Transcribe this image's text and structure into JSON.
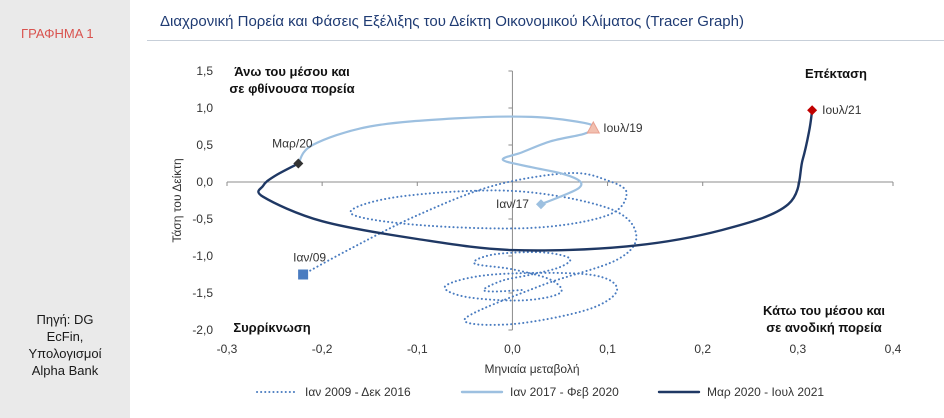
{
  "sidebar": {
    "figure_label": "ΓΡΑΦΗΜΑ 1",
    "source_lines": [
      "Πηγή: DG",
      "EcFin,",
      "Υπολογισμοί",
      "Alpha Bank"
    ]
  },
  "chart_data": {
    "type": "line",
    "title": "Διαχρονική Πορεία και Φάσεις Εξέλιξης του Δείκτη Οικονομικού Κλίματος (Tracer Graph)",
    "xlabel": "Μηνιαία μεταβολή",
    "ylabel": "Τάση του Δείκτη",
    "xlim": [
      -0.3,
      0.4
    ],
    "ylim": [
      -2.0,
      1.5
    ],
    "x_ticks": [
      "-0,3",
      "-0,2",
      "-0,1",
      "0,0",
      "0,1",
      "0,2",
      "0,3",
      "0,4"
    ],
    "y_ticks": [
      "1,5",
      "1,0",
      "0,5",
      "0,0",
      "-0,5",
      "-1,0",
      "-1,5",
      "-2,0"
    ],
    "quadrant_labels": {
      "top_left": [
        "Άνω του μέσου και",
        "σε φθίνουσα πορεία"
      ],
      "top_right": [
        "Επέκταση"
      ],
      "bottom_left": [
        "Συρρίκνωση"
      ],
      "bottom_right": [
        "Κάτω του μέσου και",
        "σε ανοδική πορεία"
      ]
    },
    "legend_position": "bottom",
    "series": [
      {
        "name": "Ιαν 2009 - Δεκ 2016",
        "color": "#4a7cc0",
        "style": "dotted",
        "start_label": "Ιαν/09",
        "points": [
          [
            -0.22,
            -1.25
          ],
          [
            -0.17,
            -0.9
          ],
          [
            -0.1,
            -0.45
          ],
          [
            -0.02,
            -0.05
          ],
          [
            0.06,
            0.12
          ],
          [
            0.1,
            0.02
          ],
          [
            0.12,
            -0.15
          ],
          [
            0.1,
            -0.45
          ],
          [
            0.02,
            -0.62
          ],
          [
            -0.1,
            -0.58
          ],
          [
            -0.17,
            -0.42
          ],
          [
            -0.12,
            -0.2
          ],
          [
            0.0,
            -0.12
          ],
          [
            0.1,
            -0.35
          ],
          [
            0.13,
            -0.7
          ],
          [
            0.11,
            -1.05
          ],
          [
            0.03,
            -1.4
          ],
          [
            -0.05,
            -1.85
          ],
          [
            0.0,
            -1.92
          ],
          [
            0.08,
            -1.72
          ],
          [
            0.11,
            -1.45
          ],
          [
            0.08,
            -1.25
          ],
          [
            -0.02,
            -1.25
          ],
          [
            -0.07,
            -1.4
          ],
          [
            -0.05,
            -1.55
          ],
          [
            0.01,
            -1.6
          ],
          [
            0.05,
            -1.5
          ],
          [
            0.04,
            -1.32
          ],
          [
            0.0,
            -1.18
          ],
          [
            -0.04,
            -1.1
          ],
          [
            -0.02,
            -0.98
          ],
          [
            0.03,
            -0.95
          ],
          [
            0.06,
            -1.03
          ],
          [
            0.05,
            -1.15
          ],
          [
            0.02,
            -1.25
          ],
          [
            -0.01,
            -1.33
          ],
          [
            -0.03,
            -1.45
          ],
          [
            -0.02,
            -1.48
          ],
          [
            0.01,
            -1.46
          ]
        ]
      },
      {
        "name": "Ιαν 2017 - Φεβ 2020",
        "color": "#9dc0e0",
        "style": "solid",
        "start_label": "Ιαν/17",
        "end_label": "Ιουλ/19",
        "points": [
          [
            0.03,
            -0.3
          ],
          [
            0.05,
            -0.2
          ],
          [
            0.07,
            -0.08
          ],
          [
            0.07,
            0.02
          ],
          [
            0.05,
            0.12
          ],
          [
            0.02,
            0.2
          ],
          [
            -0.01,
            0.3
          ],
          [
            0.01,
            0.4
          ],
          [
            0.04,
            0.55
          ],
          [
            0.075,
            0.65
          ],
          [
            0.085,
            0.73
          ],
          [
            0.075,
            0.8
          ],
          [
            0.02,
            0.88
          ],
          [
            -0.06,
            0.86
          ],
          [
            -0.15,
            0.75
          ],
          [
            -0.21,
            0.5
          ],
          [
            -0.225,
            0.25
          ]
        ]
      },
      {
        "name": "Μαρ 2020 - Ιουλ 2021",
        "color": "#1f3864",
        "style": "solid",
        "start_label": "Μαρ/20",
        "end_label": "Ιουλ/21",
        "points": [
          [
            -0.225,
            0.25
          ],
          [
            -0.25,
            0.08
          ],
          [
            -0.262,
            -0.05
          ],
          [
            -0.262,
            -0.2
          ],
          [
            -0.2,
            -0.53
          ],
          [
            -0.1,
            -0.77
          ],
          [
            0.0,
            -0.92
          ],
          [
            0.12,
            -0.87
          ],
          [
            0.22,
            -0.65
          ],
          [
            0.29,
            -0.3
          ],
          [
            0.305,
            0.3
          ],
          [
            0.312,
            0.7
          ],
          [
            0.315,
            0.97
          ]
        ]
      }
    ],
    "markers": [
      {
        "label": "Ιαν/09",
        "x": -0.22,
        "y": -1.25,
        "shape": "square",
        "color": "#4a7cc0"
      },
      {
        "label": "Ιαν/17",
        "x": 0.03,
        "y": -0.3,
        "shape": "diamond",
        "color": "#9dc0e0"
      },
      {
        "label": "Ιουλ/19",
        "x": 0.085,
        "y": 0.73,
        "shape": "triangle",
        "color": "#f2c0b0"
      },
      {
        "label": "Μαρ/20",
        "x": -0.225,
        "y": 0.25,
        "shape": "diamond",
        "color": "#333333"
      },
      {
        "label": "Ιουλ/21",
        "x": 0.315,
        "y": 0.97,
        "shape": "diamond",
        "color": "#c00000"
      }
    ]
  }
}
